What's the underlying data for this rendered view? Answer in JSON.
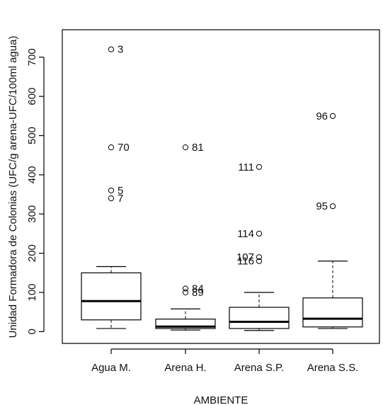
{
  "chart_data": {
    "type": "boxplot",
    "title": "",
    "xlabel": "AMBIENTE",
    "ylabel": "Unidad Formadora de Colonias (UFC/g arena-UFC/100ml agua)",
    "ylim": [
      -30,
      770
    ],
    "yticks": [
      0,
      100,
      200,
      300,
      400,
      500,
      600,
      700
    ],
    "grid": false,
    "legend": "none",
    "categories": [
      "Agua M.",
      "Arena H.",
      "Arena S.P.",
      "Arena S.S."
    ],
    "boxes": [
      {
        "category": "Agua M.",
        "whisker_low": 8,
        "q1": 30,
        "median": 78,
        "q3": 150,
        "whisker_high": 166,
        "outliers": [
          {
            "value": 720,
            "label": "3"
          },
          {
            "value": 470,
            "label": "70"
          },
          {
            "value": 360,
            "label": "5"
          },
          {
            "value": 340,
            "label": "7"
          }
        ]
      },
      {
        "category": "Arena H.",
        "whisker_low": 4,
        "q1": 8,
        "median": 13,
        "q3": 32,
        "whisker_high": 58,
        "outliers": [
          {
            "value": 470,
            "label": "81"
          },
          {
            "value": 110,
            "label": "84"
          },
          {
            "value": 100,
            "label": "89"
          }
        ]
      },
      {
        "category": "Arena S.P.",
        "whisker_low": 3,
        "q1": 8,
        "median": 25,
        "q3": 62,
        "whisker_high": 100,
        "outliers": [
          {
            "value": 420,
            "label": "111"
          },
          {
            "value": 250,
            "label": "114"
          },
          {
            "value": 190,
            "label": "107"
          },
          {
            "value": 180,
            "label": "116"
          }
        ]
      },
      {
        "category": "Arena S.S.",
        "whisker_low": 8,
        "q1": 12,
        "median": 33,
        "q3": 86,
        "whisker_high": 180,
        "outliers": [
          {
            "value": 550,
            "label": "96"
          },
          {
            "value": 320,
            "label": "95"
          }
        ]
      }
    ]
  }
}
